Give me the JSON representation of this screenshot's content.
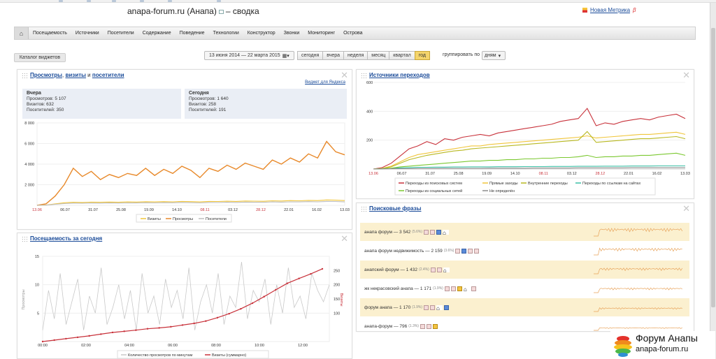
{
  "header": {
    "title": "anapa-forum.ru (Анапа)",
    "title_suffix": "– сводка",
    "new_metrika": "Новая Метрика",
    "beta": "β"
  },
  "nav": {
    "items": [
      "Посещаемость",
      "Источники",
      "Посетители",
      "Содержание",
      "Поведение",
      "Технологии",
      "Конструктор",
      "Звонки",
      "Мониторинг",
      "Острова"
    ]
  },
  "toolbar": {
    "catalog": "Каталог виджетов",
    "date_range": "13 июня 2014 — 22 марта 2015",
    "periods": [
      "сегодня",
      "вчера",
      "неделя",
      "месяц",
      "квартал",
      "год"
    ],
    "active_period": "год",
    "group_label": "группировать по",
    "group_value": "дням"
  },
  "widget_visits": {
    "title_parts": [
      "Просмотры",
      ", ",
      "визиты",
      " и ",
      "посетители"
    ],
    "ya_link": "Виджет для Яндекса",
    "yesterday": {
      "title": "Вчера",
      "lines": [
        "Просмотров: 5 107",
        "Визитов: 632",
        "Посетителей: 350"
      ]
    },
    "today": {
      "title": "Сегодня",
      "lines": [
        "Просмотров: 1 640",
        "Визитов: 258",
        "Посетителей: 191"
      ]
    },
    "legend": [
      "Визиты",
      "Просмотры",
      "Посетители"
    ]
  },
  "widget_sources": {
    "title": "Источники переходов",
    "legend": [
      "Переходы из поисковых систем",
      "Прямые заходы",
      "Внутренние переходы",
      "Переходы по ссылкам на сайтах",
      "Переходы из социальных сетей",
      "Не определён"
    ]
  },
  "widget_today": {
    "title": "Посещаемость за сегодня",
    "left_axis_label": "Просмотры",
    "right_axis_label": "Визиты",
    "legend": [
      "Количество просмотров по минутам",
      "Визиты (суммарно)"
    ]
  },
  "widget_phrases": {
    "title": "Поисковые фразы",
    "rows": [
      {
        "text": "анапа форум — 3 542",
        "pct": "(5.6%)"
      },
      {
        "text": "анапа форум недвижимость — 2 159",
        "pct": "(3.6%)"
      },
      {
        "text": "анапский форум — 1 432",
        "pct": "(2.4%)"
      },
      {
        "text": "жк некрасовский анапа — 1 171",
        "pct": "(1.9%)"
      },
      {
        "text": "форум анапа — 1 170",
        "pct": "(1.9%)"
      },
      {
        "text": "анапа-форум — 796",
        "pct": "(1.3%)"
      }
    ]
  },
  "logo": {
    "name": "Форум Анапы",
    "url": "anapa-forum.ru"
  },
  "chart_data": [
    {
      "type": "line",
      "ylim": [
        0,
        8000
      ],
      "y_ticks": [
        "8 000",
        "6 000",
        "4 000",
        "2 000"
      ],
      "x_ticks": [
        "13.06",
        "06.07",
        "31.07",
        "25.08",
        "19.09",
        "14.10",
        "08.11",
        "03.12",
        "28.12",
        "22.01",
        "16.02",
        "13.03"
      ],
      "x_ticks_red": [
        "13.06",
        "08.11",
        "28.12"
      ],
      "series": [
        {
          "name": "Просмотры",
          "color": "#e8892a",
          "values": [
            0,
            150,
            900,
            2000,
            3600,
            2800,
            3300,
            2500,
            3000,
            2700,
            3100,
            2900,
            3600,
            2900,
            3500,
            3100,
            3800,
            3400,
            2700,
            3600,
            3300,
            3900,
            3500,
            4100,
            3800,
            3500,
            4400,
            4000,
            4600,
            4200,
            5000,
            4600,
            6200,
            5200,
            4900
          ]
        },
        {
          "name": "Визиты",
          "color": "#f0c53a",
          "values": [
            0,
            30,
            140,
            250,
            300,
            280,
            310,
            300,
            320,
            300,
            330,
            320,
            350,
            330,
            360,
            340,
            380,
            360,
            330,
            380,
            370,
            400,
            380,
            420,
            410,
            390,
            440,
            420,
            460,
            440,
            480,
            460,
            520,
            500,
            460
          ]
        },
        {
          "name": "Посетители",
          "color": "#bdbdbd",
          "values": [
            0,
            20,
            100,
            170,
            210,
            200,
            220,
            210,
            230,
            220,
            240,
            230,
            250,
            240,
            260,
            250,
            280,
            260,
            240,
            280,
            270,
            300,
            280,
            310,
            300,
            290,
            330,
            310,
            340,
            330,
            360,
            340,
            380,
            370,
            330
          ]
        }
      ]
    },
    {
      "type": "line",
      "ylim": [
        0,
        600
      ],
      "y_ticks": [
        "600",
        "400",
        "200"
      ],
      "x_ticks": [
        "13.06",
        "06.07",
        "31.07",
        "25.08",
        "19.09",
        "14.10",
        "08.11",
        "03.12",
        "28.12",
        "22.01",
        "16.02",
        "13.03"
      ],
      "x_ticks_red": [
        "13.06",
        "08.11",
        "28.12"
      ],
      "series": [
        {
          "name": "Переходы из поисковых систем",
          "color": "#c8313a",
          "values": [
            0,
            10,
            40,
            90,
            140,
            160,
            190,
            170,
            210,
            200,
            220,
            230,
            240,
            230,
            250,
            260,
            270,
            280,
            290,
            300,
            310,
            330,
            340,
            350,
            420,
            300,
            320,
            310,
            330,
            340,
            350,
            340,
            360,
            370,
            380,
            350
          ]
        },
        {
          "name": "Прямые заходы",
          "color": "#f0c53a",
          "values": [
            0,
            5,
            20,
            50,
            80,
            100,
            110,
            120,
            130,
            140,
            150,
            160,
            160,
            170,
            175,
            180,
            185,
            190,
            195,
            200,
            205,
            210,
            215,
            220,
            230,
            215,
            220,
            225,
            230,
            235,
            240,
            240,
            245,
            250,
            255,
            240
          ]
        },
        {
          "name": "Внутренние переходы",
          "color": "#b8b820",
          "values": [
            0,
            3,
            15,
            40,
            65,
            80,
            95,
            105,
            115,
            125,
            130,
            140,
            145,
            150,
            155,
            160,
            165,
            170,
            175,
            180,
            185,
            190,
            195,
            200,
            260,
            185,
            190,
            195,
            200,
            205,
            210,
            210,
            215,
            220,
            225,
            210
          ]
        },
        {
          "name": "Переходы по ссылкам на сайтах",
          "color": "#3bbfa5",
          "values": [
            0,
            2,
            5,
            8,
            10,
            12,
            12,
            13,
            13,
            14,
            14,
            15,
            15,
            15,
            16,
            16,
            16,
            17,
            17,
            17,
            18,
            18,
            18,
            19,
            19,
            19,
            20,
            20,
            20,
            21,
            21,
            21,
            22,
            22,
            22,
            22
          ]
        },
        {
          "name": "Переходы из социальных сетей",
          "color": "#7bc830",
          "values": [
            0,
            2,
            6,
            15,
            20,
            25,
            30,
            35,
            40,
            45,
            50,
            55,
            55,
            60,
            60,
            65,
            65,
            70,
            70,
            75,
            75,
            80,
            80,
            85,
            95,
            80,
            85,
            85,
            90,
            90,
            95,
            95,
            100,
            105,
            110,
            95
          ]
        },
        {
          "name": "Не определён",
          "color": "#8e8e8e",
          "values": [
            0,
            1,
            2,
            3,
            3,
            4,
            4,
            4,
            5,
            5,
            5,
            5,
            5,
            6,
            6,
            6,
            6,
            6,
            7,
            7,
            7,
            7,
            7,
            8,
            8,
            8,
            8,
            8,
            8,
            9,
            9,
            9,
            9,
            9,
            9,
            9
          ]
        }
      ]
    },
    {
      "type": "line",
      "left_ylim": [
        0,
        15
      ],
      "right_ylim": [
        0,
        300
      ],
      "left_ticks": [
        "15",
        "10",
        "5"
      ],
      "right_ticks": [
        "250",
        "200",
        "150",
        "100"
      ],
      "x_ticks": [
        "00:00",
        "02:00",
        "04:00",
        "06:00",
        "08:00",
        "10:00",
        "12:00"
      ],
      "series": [
        {
          "name": "Количество просмотров по минутам",
          "color": "#c9c9c9",
          "values": [
            2,
            9,
            4,
            12,
            3,
            7,
            11,
            2,
            8,
            5,
            13,
            3,
            6,
            10,
            4,
            9,
            2,
            12,
            5,
            8,
            3,
            11,
            6,
            9,
            4,
            13,
            2,
            7,
            10,
            5,
            12,
            3,
            8,
            6,
            14,
            4,
            9,
            7,
            11,
            3,
            10,
            5,
            13,
            6,
            8,
            4,
            12,
            9,
            7,
            10
          ]
        },
        {
          "name": "Визиты (суммарно)",
          "color": "#c8313a",
          "values": [
            0,
            5,
            10,
            15,
            20,
            26,
            32,
            36,
            40,
            45,
            48,
            52,
            58,
            64,
            72,
            84,
            98,
            115,
            135,
            158,
            182,
            205,
            222,
            238,
            256
          ]
        }
      ]
    }
  ]
}
